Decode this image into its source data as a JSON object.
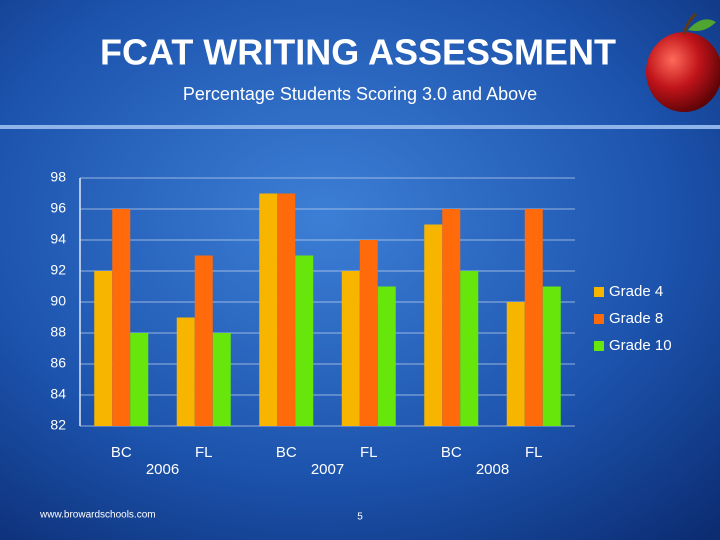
{
  "chart_data": {
    "type": "bar",
    "title": "FCAT WRITING ASSESSMENT",
    "subtitle": "Percentage Students Scoring 3.0 and Above",
    "categories": [
      "BC",
      "FL",
      "BC",
      "FL",
      "BC",
      "FL"
    ],
    "groups": [
      "2006",
      "2007",
      "2008"
    ],
    "series": [
      {
        "name": "Grade 4",
        "color": "#f7b500",
        "values": [
          92,
          89,
          97,
          92,
          95,
          90
        ]
      },
      {
        "name": "Grade 8",
        "color": "#ff6a0a",
        "values": [
          96,
          93,
          97,
          94,
          96,
          96
        ]
      },
      {
        "name": "Grade 10",
        "color": "#66e60a",
        "values": [
          88,
          88,
          93,
          91,
          92,
          91
        ]
      }
    ],
    "ylim": [
      82,
      98
    ],
    "yticks": [
      82,
      84,
      86,
      88,
      90,
      92,
      94,
      96,
      98
    ],
    "grid": true,
    "legend": "right"
  },
  "footer": {
    "source": "www.browardschools.com",
    "page": "5"
  }
}
